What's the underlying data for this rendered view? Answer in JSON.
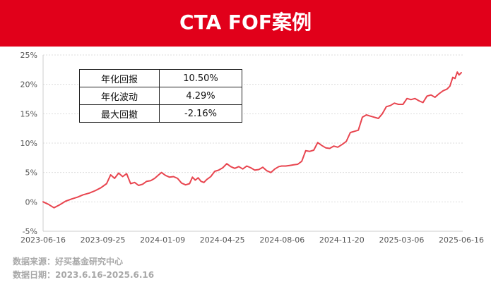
{
  "header": {
    "title": "CTA FOF案例"
  },
  "stats_table": {
    "rows": [
      {
        "label": "年化回报",
        "value": "10.50%"
      },
      {
        "label": "年化波动",
        "value": "4.29%"
      },
      {
        "label": "最大回撤",
        "value": "-2.16%"
      }
    ]
  },
  "footer": {
    "source": "数据来源：好买基金研究中心",
    "date_range": "数据日期：2023.6.16-2025.6.16"
  },
  "colors": {
    "banner": "#e1001a",
    "line": "#e8454f",
    "grid": "#dddddd",
    "axis_text": "#555555",
    "footer_text": "#a8a8a8"
  },
  "chart_data": {
    "type": "line",
    "title": "",
    "xlabel": "",
    "ylabel": "",
    "x_tick_labels": [
      "2023-06-16",
      "2023-09-25",
      "2024-01-09",
      "2024-04-25",
      "2024-08-06",
      "2024-11-20",
      "2025-03-06",
      "2025-06-16"
    ],
    "y_tick_labels": [
      "25%",
      "20%",
      "15%",
      "10%",
      "5%",
      "0%",
      "-5%"
    ],
    "ylim": [
      -5,
      25
    ],
    "xlim": [
      "2023-06-16",
      "2025-06-16"
    ],
    "grid": "horizontal dotted",
    "series": [
      {
        "color": "#e8454f",
        "points": [
          [
            "2023-06-16",
            0.0
          ],
          [
            "2023-06-25",
            -0.4
          ],
          [
            "2023-07-05",
            -1.0
          ],
          [
            "2023-07-15",
            -0.5
          ],
          [
            "2023-07-25",
            0.1
          ],
          [
            "2023-08-05",
            0.5
          ],
          [
            "2023-08-15",
            0.8
          ],
          [
            "2023-08-25",
            1.2
          ],
          [
            "2023-09-05",
            1.5
          ],
          [
            "2023-09-15",
            1.9
          ],
          [
            "2023-09-25",
            2.4
          ],
          [
            "2023-10-05",
            3.1
          ],
          [
            "2023-10-12",
            4.6
          ],
          [
            "2023-10-19",
            4.0
          ],
          [
            "2023-10-26",
            4.9
          ],
          [
            "2023-11-02",
            4.3
          ],
          [
            "2023-11-09",
            4.8
          ],
          [
            "2023-11-16",
            3.1
          ],
          [
            "2023-11-23",
            3.3
          ],
          [
            "2023-11-30",
            2.8
          ],
          [
            "2023-12-07",
            3.0
          ],
          [
            "2023-12-14",
            3.5
          ],
          [
            "2023-12-21",
            3.6
          ],
          [
            "2023-12-28",
            4.0
          ],
          [
            "2024-01-04",
            4.6
          ],
          [
            "2024-01-09",
            5.0
          ],
          [
            "2024-01-16",
            4.5
          ],
          [
            "2024-01-23",
            4.2
          ],
          [
            "2024-01-30",
            4.3
          ],
          [
            "2024-02-06",
            4.0
          ],
          [
            "2024-02-13",
            3.2
          ],
          [
            "2024-02-20",
            2.9
          ],
          [
            "2024-02-27",
            3.1
          ],
          [
            "2024-03-03",
            4.2
          ],
          [
            "2024-03-08",
            3.7
          ],
          [
            "2024-03-13",
            4.1
          ],
          [
            "2024-03-18",
            3.5
          ],
          [
            "2024-03-23",
            3.3
          ],
          [
            "2024-03-28",
            3.8
          ],
          [
            "2024-04-04",
            4.3
          ],
          [
            "2024-04-11",
            5.2
          ],
          [
            "2024-04-18",
            5.4
          ],
          [
            "2024-04-25",
            5.8
          ],
          [
            "2024-05-02",
            6.5
          ],
          [
            "2024-05-09",
            6.0
          ],
          [
            "2024-05-16",
            5.7
          ],
          [
            "2024-05-23",
            6.0
          ],
          [
            "2024-05-30",
            5.6
          ],
          [
            "2024-06-06",
            6.1
          ],
          [
            "2024-06-13",
            5.8
          ],
          [
            "2024-06-20",
            5.4
          ],
          [
            "2024-06-27",
            5.5
          ],
          [
            "2024-07-04",
            5.9
          ],
          [
            "2024-07-11",
            5.3
          ],
          [
            "2024-07-18",
            5.0
          ],
          [
            "2024-07-25",
            5.6
          ],
          [
            "2024-08-01",
            6.0
          ],
          [
            "2024-08-06",
            6.1
          ],
          [
            "2024-08-13",
            6.1
          ],
          [
            "2024-08-20",
            6.2
          ],
          [
            "2024-08-27",
            6.3
          ],
          [
            "2024-09-03",
            6.4
          ],
          [
            "2024-09-10",
            6.9
          ],
          [
            "2024-09-17",
            8.7
          ],
          [
            "2024-09-24",
            8.6
          ],
          [
            "2024-10-01",
            8.8
          ],
          [
            "2024-10-08",
            10.1
          ],
          [
            "2024-10-15",
            9.6
          ],
          [
            "2024-10-22",
            9.2
          ],
          [
            "2024-10-29",
            9.1
          ],
          [
            "2024-11-05",
            9.5
          ],
          [
            "2024-11-12",
            9.3
          ],
          [
            "2024-11-20",
            9.8
          ],
          [
            "2024-11-27",
            10.3
          ],
          [
            "2024-12-04",
            11.8
          ],
          [
            "2024-12-11",
            12.0
          ],
          [
            "2024-12-18",
            12.2
          ],
          [
            "2024-12-25",
            14.4
          ],
          [
            "2025-01-01",
            14.8
          ],
          [
            "2025-01-08",
            14.6
          ],
          [
            "2025-01-15",
            14.4
          ],
          [
            "2025-01-22",
            14.2
          ],
          [
            "2025-01-29",
            15.0
          ],
          [
            "2025-02-05",
            16.2
          ],
          [
            "2025-02-12",
            16.4
          ],
          [
            "2025-02-19",
            16.8
          ],
          [
            "2025-02-26",
            16.6
          ],
          [
            "2025-03-06",
            16.6
          ],
          [
            "2025-03-13",
            17.6
          ],
          [
            "2025-03-20",
            17.4
          ],
          [
            "2025-03-27",
            17.6
          ],
          [
            "2025-04-03",
            17.2
          ],
          [
            "2025-04-10",
            16.9
          ],
          [
            "2025-04-17",
            18.0
          ],
          [
            "2025-04-24",
            18.2
          ],
          [
            "2025-05-01",
            17.8
          ],
          [
            "2025-05-08",
            18.4
          ],
          [
            "2025-05-15",
            18.9
          ],
          [
            "2025-05-22",
            19.2
          ],
          [
            "2025-05-27",
            19.7
          ],
          [
            "2025-06-01",
            21.2
          ],
          [
            "2025-06-05",
            21.0
          ],
          [
            "2025-06-09",
            22.1
          ],
          [
            "2025-06-12",
            21.6
          ],
          [
            "2025-06-16",
            22.0
          ]
        ]
      }
    ]
  }
}
